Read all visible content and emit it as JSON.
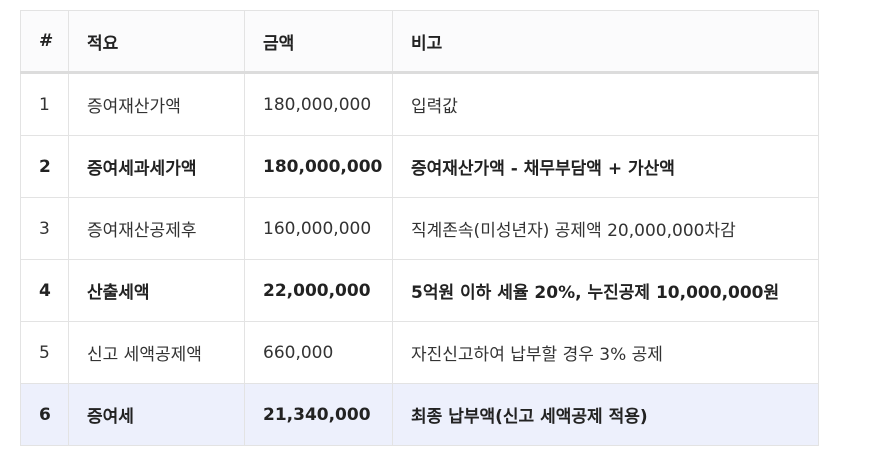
{
  "table": {
    "headers": [
      "#",
      "적요",
      "금액",
      "비고"
    ],
    "rows": [
      {
        "no": "1",
        "item": "증여재산가액",
        "amount": "180,000,000",
        "note": "입력값"
      },
      {
        "no": "2",
        "item": "증여세과세가액",
        "amount": "180,000,000",
        "note": "증여재산가액 - 채무부담액 + 가산액"
      },
      {
        "no": "3",
        "item": "증여재산공제후",
        "amount": "160,000,000",
        "note": "직계존속(미성년자) 공제액 20,000,000차감"
      },
      {
        "no": "4",
        "item": "산출세액",
        "amount": "22,000,000",
        "note": "5억원 이하 세율 20%, 누진공제 10,000,000원"
      },
      {
        "no": "5",
        "item": "신고 세액공제액",
        "amount": "660,000",
        "note": "자진신고하여 납부할 경우 3% 공제"
      },
      {
        "no": "6",
        "item": "증여세",
        "amount": "21,340,000",
        "note": "최종 납부액(신고 세액공제 적용)"
      }
    ]
  },
  "colors": {
    "border": "#e3e3e3",
    "header_bg": "#fbfbfc",
    "final_row_bg": "#edf0fc",
    "text": "#333333"
  }
}
